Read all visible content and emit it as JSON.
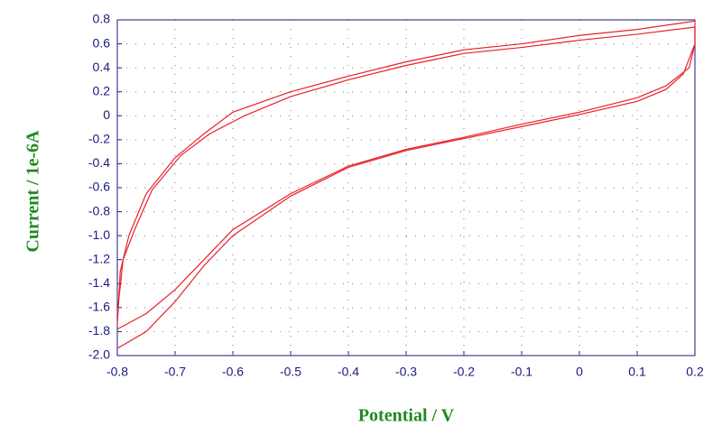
{
  "chart_data": {
    "type": "line",
    "x_label": "Potential / V",
    "y_label": "Current / 1e-6A",
    "xlim": [
      -0.8,
      0.2
    ],
    "ylim": [
      -2.0,
      0.8
    ],
    "xticks": [
      -0.8,
      -0.7,
      -0.6,
      -0.5,
      -0.4,
      -0.3,
      -0.2,
      -0.1,
      0,
      0.1,
      0.2
    ],
    "yticks": [
      0.8,
      0.6,
      0.4,
      0.2,
      0,
      -0.2,
      -0.4,
      -0.6,
      -0.8,
      {
        "value": -1.0,
        "label": "-1.0"
      },
      -1.2,
      -1.4,
      -1.6,
      -1.8,
      {
        "value": -2.0,
        "label": "-2.0"
      }
    ],
    "grid": true,
    "axis_color": "#1a1a80",
    "series": [
      {
        "color": "#e8202a",
        "x": [
          -0.8,
          -0.795,
          -0.78,
          -0.75,
          -0.7,
          -0.65,
          -0.6,
          -0.5,
          -0.4,
          -0.3,
          -0.2,
          -0.1,
          0,
          0.1,
          0.2,
          0.2,
          0.19,
          0.15,
          0.1,
          0,
          -0.1,
          -0.2,
          -0.3,
          -0.4,
          -0.5,
          -0.6,
          -0.65,
          -0.7,
          -0.75,
          -0.8
        ],
        "values": [
          -1.75,
          -1.3,
          -1.0,
          -0.65,
          -0.35,
          -0.15,
          0.03,
          0.2,
          0.33,
          0.45,
          0.55,
          0.6,
          0.67,
          0.72,
          0.79,
          0.6,
          0.4,
          0.25,
          0.15,
          0.03,
          -0.07,
          -0.18,
          -0.28,
          -0.42,
          -0.65,
          -0.95,
          -1.2,
          -1.45,
          -1.65,
          -1.78
        ]
      },
      {
        "color": "#e8202a",
        "x": [
          -0.8,
          -0.79,
          -0.77,
          -0.74,
          -0.69,
          -0.64,
          -0.58,
          -0.5,
          -0.4,
          -0.3,
          -0.2,
          -0.1,
          0,
          0.1,
          0.2,
          0.2,
          0.18,
          0.15,
          0.1,
          0,
          -0.1,
          -0.2,
          -0.3,
          -0.4,
          -0.5,
          -0.6,
          -0.65,
          -0.7,
          -0.75,
          -0.8
        ],
        "values": [
          -1.65,
          -1.2,
          -0.95,
          -0.62,
          -0.33,
          -0.15,
          0.0,
          0.16,
          0.3,
          0.42,
          0.52,
          0.57,
          0.63,
          0.68,
          0.74,
          0.6,
          0.35,
          0.22,
          0.12,
          0.01,
          -0.09,
          -0.19,
          -0.29,
          -0.43,
          -0.67,
          -1.0,
          -1.25,
          -1.55,
          -1.8,
          -1.94
        ]
      }
    ]
  }
}
